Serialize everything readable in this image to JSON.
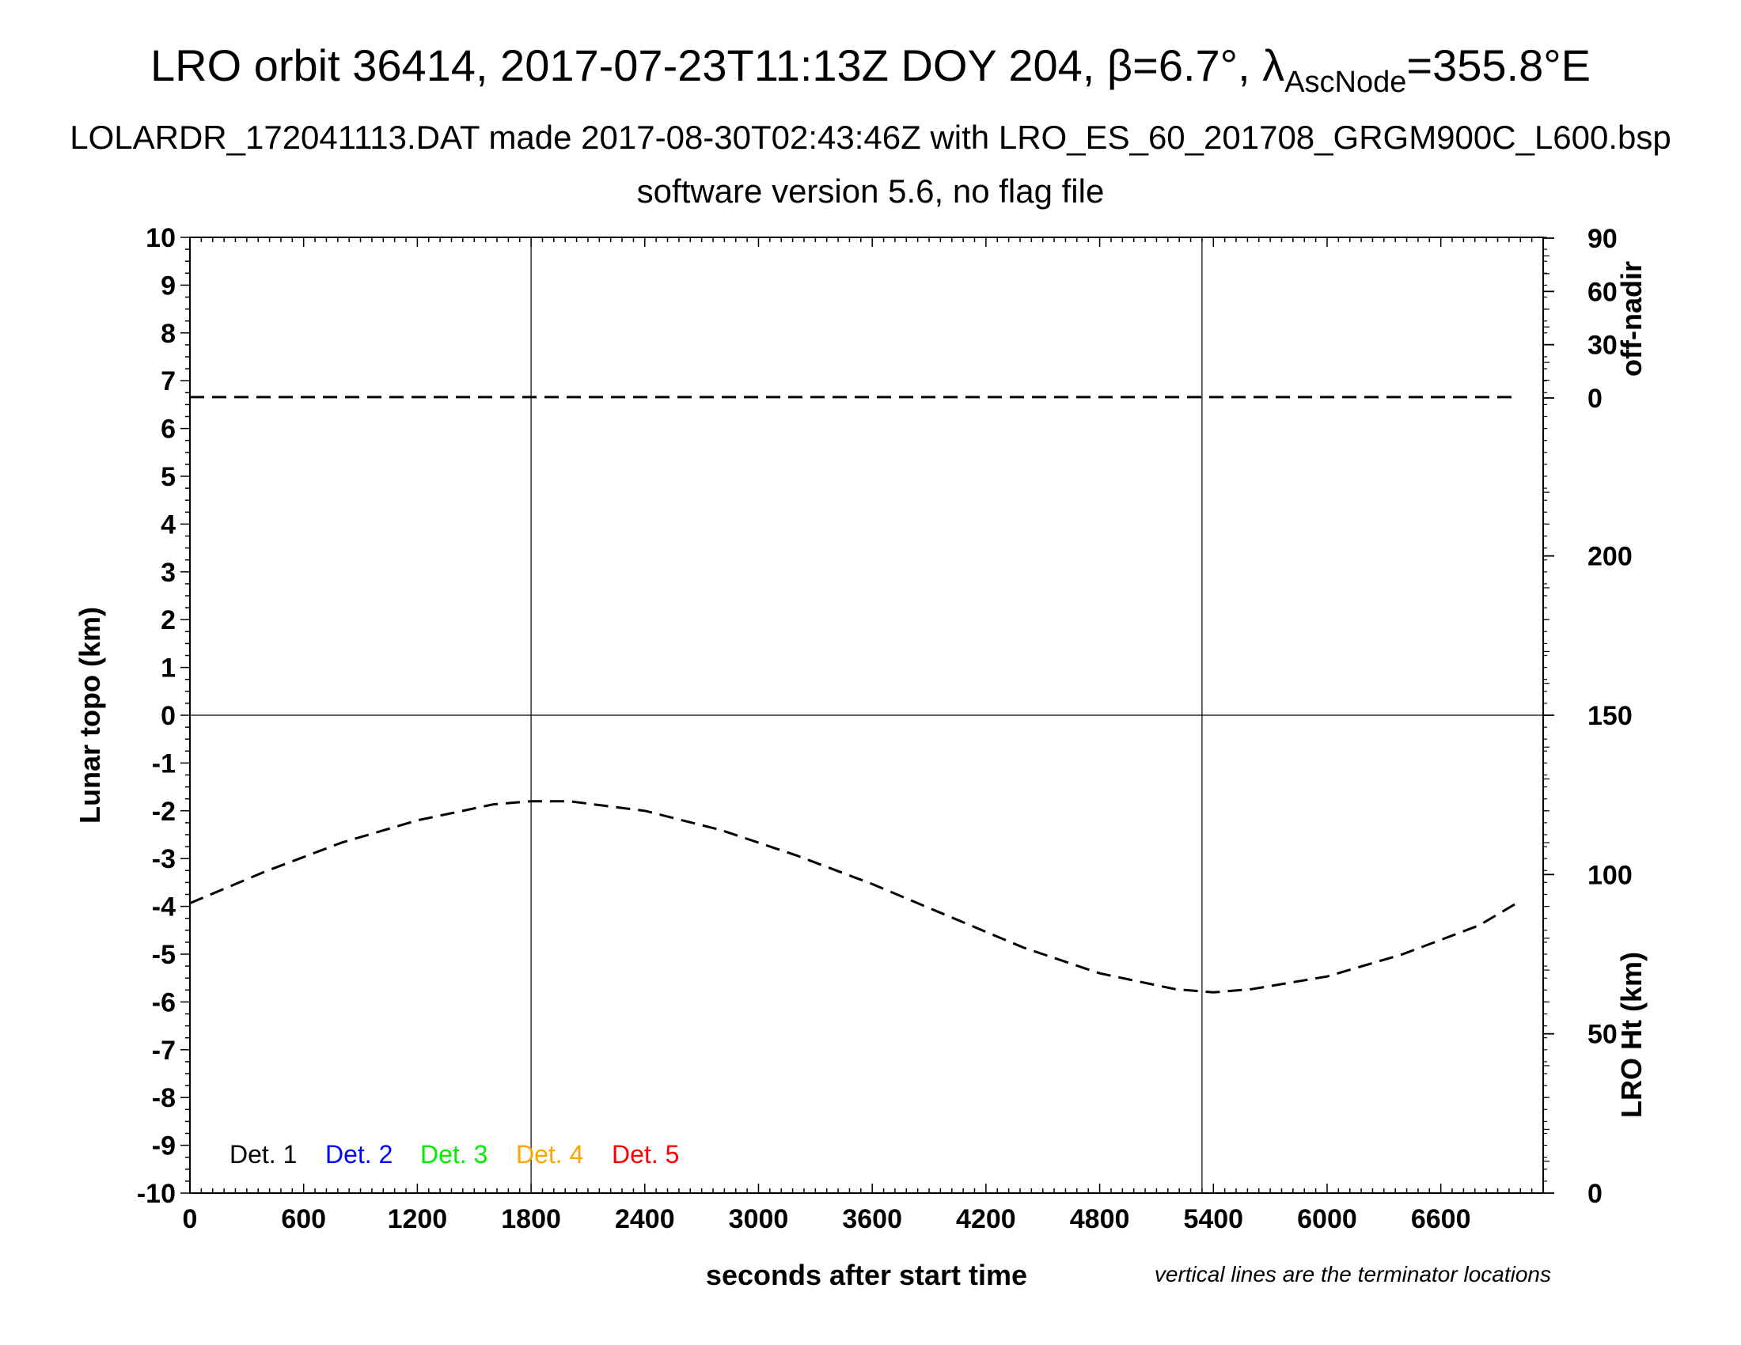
{
  "header": {
    "title_main": "LRO orbit 36414, 2017-07-23T11:13Z DOY 204, β=6.7°, λ",
    "title_sub": "AscNode",
    "title_end": "=355.8°E",
    "line2": "LOLARDR_172041113.DAT made 2017-08-30T02:43:46Z with LRO_ES_60_201708_GRGM900C_L600.bsp",
    "line3": "software version 5.6, no flag file"
  },
  "note": "vertical lines are the terminator locations",
  "colors": {
    "det1": "#000000",
    "det2": "#0000ff",
    "det3": "#00ee00",
    "det4": "#ffa500",
    "det5": "#ff0000",
    "axis": "#000000",
    "grid": "#000000"
  },
  "chart_data": {
    "type": "line",
    "xlabel": "seconds after start time",
    "ylabel": "Lunar topo (km)",
    "y2label_top": "off-nadir",
    "y2label_bottom": "LRO Ht (km)",
    "xlim": [
      0,
      7140
    ],
    "ylim": [
      -10,
      10
    ],
    "xticks": [
      0,
      600,
      1200,
      1800,
      2400,
      3000,
      3600,
      4200,
      4800,
      5400,
      6000,
      6600
    ],
    "yticks": [
      10,
      9,
      8,
      7,
      6,
      5,
      4,
      3,
      2,
      1,
      0,
      -1,
      -2,
      -3,
      -4,
      -5,
      -6,
      -7,
      -8,
      -9,
      -10
    ],
    "offnadir_ticks": [
      90,
      60,
      30,
      0
    ],
    "ht_ticks": [
      200,
      150,
      100,
      50,
      0
    ],
    "offnadir_range": [
      0,
      90
    ],
    "ht_range": [
      0,
      300
    ],
    "terminators_s": [
      1800,
      5340
    ],
    "legend": [
      "Det. 1",
      "Det. 2",
      "Det. 3",
      "Det. 4",
      "Det. 5"
    ],
    "series": [
      {
        "name": "off-nadir",
        "style": "dashed",
        "units": "deg",
        "x": [
          0,
          1000,
          2000,
          3000,
          4000,
          5000,
          6000,
          7000
        ],
        "y": [
          0.5,
          0.5,
          0.5,
          0.5,
          0.5,
          0.5,
          0.5,
          0.5
        ]
      },
      {
        "name": "LRO Ht",
        "style": "dashed",
        "units": "km",
        "x": [
          0,
          400,
          800,
          1200,
          1600,
          1800,
          2000,
          2400,
          2800,
          3200,
          3600,
          4000,
          4400,
          4800,
          5200,
          5400,
          5600,
          6000,
          6400,
          6800,
          7000
        ],
        "y": [
          91,
          101,
          110,
          117,
          122,
          123,
          123,
          120,
          114,
          106,
          97,
          87,
          77,
          69,
          64,
          63,
          64,
          68,
          75,
          84,
          91
        ]
      }
    ]
  }
}
